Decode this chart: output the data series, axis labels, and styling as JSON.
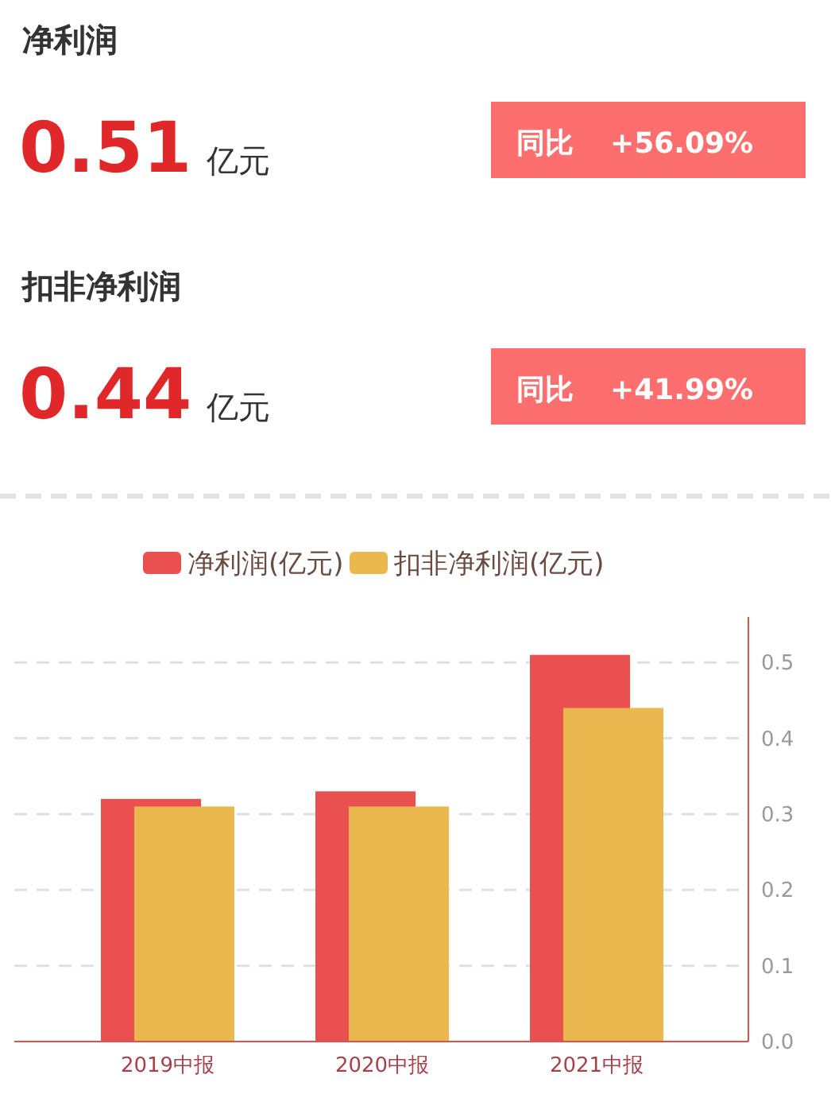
{
  "chart_data": [
    {
      "type": "other",
      "annotations": [
        "净利润",
        "0.51",
        "亿元",
        "同比",
        "+56.09%",
        "扣非净利润",
        "0.44",
        "亿元",
        "同比",
        "+41.99%"
      ]
    },
    {
      "type": "bar",
      "categories": [
        "2019中报",
        "2020中报",
        "2021中报"
      ],
      "series": [
        {
          "name": "净利润(亿元)",
          "color": "#eb5050",
          "values": [
            0.32,
            0.33,
            0.51
          ]
        },
        {
          "name": "扣非净利润(亿元)",
          "color": "#ebb84f",
          "values": [
            0.31,
            0.31,
            0.44
          ]
        }
      ],
      "ylim": [
        0,
        0.56
      ],
      "yticks": [
        {
          "value": 0,
          "label": "0.0"
        },
        0.1,
        0.2,
        0.3,
        0.4,
        0.5
      ],
      "grid": "y",
      "legend": "top"
    }
  ]
}
